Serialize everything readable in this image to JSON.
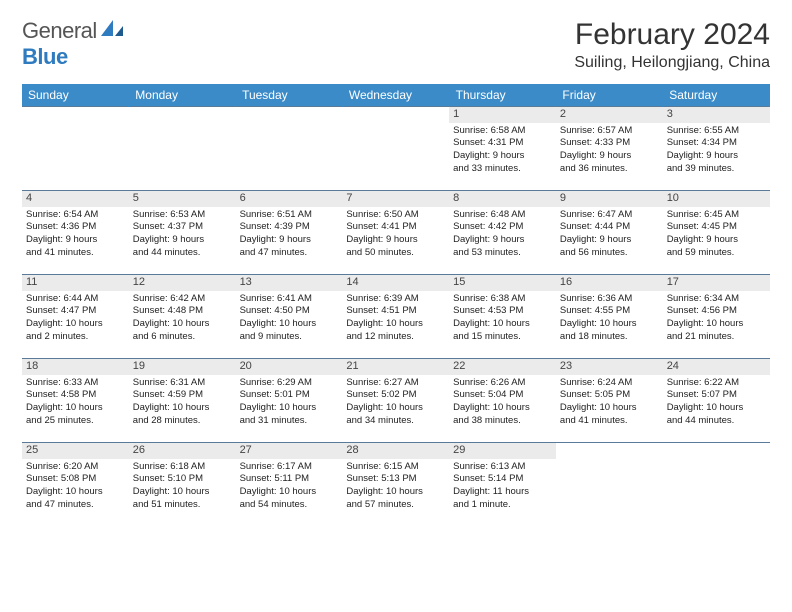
{
  "logo": {
    "text1": "General",
    "text2": "Blue"
  },
  "title": "February 2024",
  "location": "Suiling, Heilongjiang, China",
  "colors": {
    "header_bg": "#3b8bc9",
    "daynum_bg": "#ebebeb",
    "rule": "#5a7a9a",
    "logo_blue": "#2f7bbf"
  },
  "weekdays": [
    "Sunday",
    "Monday",
    "Tuesday",
    "Wednesday",
    "Thursday",
    "Friday",
    "Saturday"
  ],
  "weeks": [
    [
      null,
      null,
      null,
      null,
      {
        "n": "1",
        "sr": "Sunrise: 6:58 AM",
        "ss": "Sunset: 4:31 PM",
        "d1": "Daylight: 9 hours",
        "d2": "and 33 minutes."
      },
      {
        "n": "2",
        "sr": "Sunrise: 6:57 AM",
        "ss": "Sunset: 4:33 PM",
        "d1": "Daylight: 9 hours",
        "d2": "and 36 minutes."
      },
      {
        "n": "3",
        "sr": "Sunrise: 6:55 AM",
        "ss": "Sunset: 4:34 PM",
        "d1": "Daylight: 9 hours",
        "d2": "and 39 minutes."
      }
    ],
    [
      {
        "n": "4",
        "sr": "Sunrise: 6:54 AM",
        "ss": "Sunset: 4:36 PM",
        "d1": "Daylight: 9 hours",
        "d2": "and 41 minutes."
      },
      {
        "n": "5",
        "sr": "Sunrise: 6:53 AM",
        "ss": "Sunset: 4:37 PM",
        "d1": "Daylight: 9 hours",
        "d2": "and 44 minutes."
      },
      {
        "n": "6",
        "sr": "Sunrise: 6:51 AM",
        "ss": "Sunset: 4:39 PM",
        "d1": "Daylight: 9 hours",
        "d2": "and 47 minutes."
      },
      {
        "n": "7",
        "sr": "Sunrise: 6:50 AM",
        "ss": "Sunset: 4:41 PM",
        "d1": "Daylight: 9 hours",
        "d2": "and 50 minutes."
      },
      {
        "n": "8",
        "sr": "Sunrise: 6:48 AM",
        "ss": "Sunset: 4:42 PM",
        "d1": "Daylight: 9 hours",
        "d2": "and 53 minutes."
      },
      {
        "n": "9",
        "sr": "Sunrise: 6:47 AM",
        "ss": "Sunset: 4:44 PM",
        "d1": "Daylight: 9 hours",
        "d2": "and 56 minutes."
      },
      {
        "n": "10",
        "sr": "Sunrise: 6:45 AM",
        "ss": "Sunset: 4:45 PM",
        "d1": "Daylight: 9 hours",
        "d2": "and 59 minutes."
      }
    ],
    [
      {
        "n": "11",
        "sr": "Sunrise: 6:44 AM",
        "ss": "Sunset: 4:47 PM",
        "d1": "Daylight: 10 hours",
        "d2": "and 2 minutes."
      },
      {
        "n": "12",
        "sr": "Sunrise: 6:42 AM",
        "ss": "Sunset: 4:48 PM",
        "d1": "Daylight: 10 hours",
        "d2": "and 6 minutes."
      },
      {
        "n": "13",
        "sr": "Sunrise: 6:41 AM",
        "ss": "Sunset: 4:50 PM",
        "d1": "Daylight: 10 hours",
        "d2": "and 9 minutes."
      },
      {
        "n": "14",
        "sr": "Sunrise: 6:39 AM",
        "ss": "Sunset: 4:51 PM",
        "d1": "Daylight: 10 hours",
        "d2": "and 12 minutes."
      },
      {
        "n": "15",
        "sr": "Sunrise: 6:38 AM",
        "ss": "Sunset: 4:53 PM",
        "d1": "Daylight: 10 hours",
        "d2": "and 15 minutes."
      },
      {
        "n": "16",
        "sr": "Sunrise: 6:36 AM",
        "ss": "Sunset: 4:55 PM",
        "d1": "Daylight: 10 hours",
        "d2": "and 18 minutes."
      },
      {
        "n": "17",
        "sr": "Sunrise: 6:34 AM",
        "ss": "Sunset: 4:56 PM",
        "d1": "Daylight: 10 hours",
        "d2": "and 21 minutes."
      }
    ],
    [
      {
        "n": "18",
        "sr": "Sunrise: 6:33 AM",
        "ss": "Sunset: 4:58 PM",
        "d1": "Daylight: 10 hours",
        "d2": "and 25 minutes."
      },
      {
        "n": "19",
        "sr": "Sunrise: 6:31 AM",
        "ss": "Sunset: 4:59 PM",
        "d1": "Daylight: 10 hours",
        "d2": "and 28 minutes."
      },
      {
        "n": "20",
        "sr": "Sunrise: 6:29 AM",
        "ss": "Sunset: 5:01 PM",
        "d1": "Daylight: 10 hours",
        "d2": "and 31 minutes."
      },
      {
        "n": "21",
        "sr": "Sunrise: 6:27 AM",
        "ss": "Sunset: 5:02 PM",
        "d1": "Daylight: 10 hours",
        "d2": "and 34 minutes."
      },
      {
        "n": "22",
        "sr": "Sunrise: 6:26 AM",
        "ss": "Sunset: 5:04 PM",
        "d1": "Daylight: 10 hours",
        "d2": "and 38 minutes."
      },
      {
        "n": "23",
        "sr": "Sunrise: 6:24 AM",
        "ss": "Sunset: 5:05 PM",
        "d1": "Daylight: 10 hours",
        "d2": "and 41 minutes."
      },
      {
        "n": "24",
        "sr": "Sunrise: 6:22 AM",
        "ss": "Sunset: 5:07 PM",
        "d1": "Daylight: 10 hours",
        "d2": "and 44 minutes."
      }
    ],
    [
      {
        "n": "25",
        "sr": "Sunrise: 6:20 AM",
        "ss": "Sunset: 5:08 PM",
        "d1": "Daylight: 10 hours",
        "d2": "and 47 minutes."
      },
      {
        "n": "26",
        "sr": "Sunrise: 6:18 AM",
        "ss": "Sunset: 5:10 PM",
        "d1": "Daylight: 10 hours",
        "d2": "and 51 minutes."
      },
      {
        "n": "27",
        "sr": "Sunrise: 6:17 AM",
        "ss": "Sunset: 5:11 PM",
        "d1": "Daylight: 10 hours",
        "d2": "and 54 minutes."
      },
      {
        "n": "28",
        "sr": "Sunrise: 6:15 AM",
        "ss": "Sunset: 5:13 PM",
        "d1": "Daylight: 10 hours",
        "d2": "and 57 minutes."
      },
      {
        "n": "29",
        "sr": "Sunrise: 6:13 AM",
        "ss": "Sunset: 5:14 PM",
        "d1": "Daylight: 11 hours",
        "d2": "and 1 minute."
      },
      null,
      null
    ]
  ]
}
